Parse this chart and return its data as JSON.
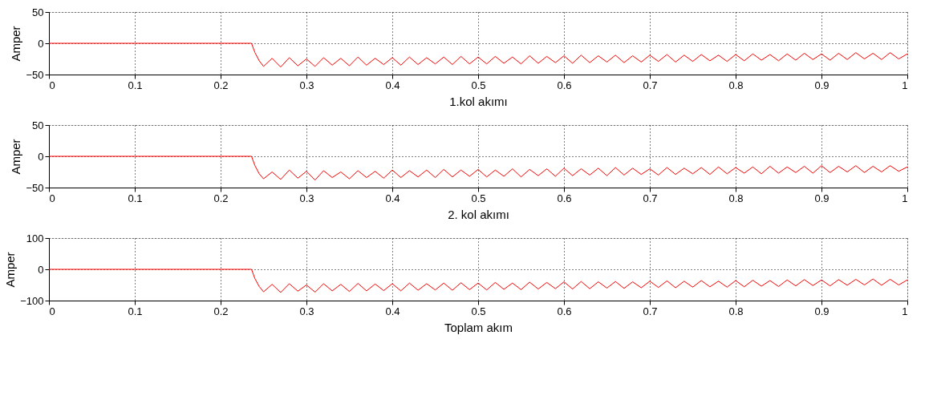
{
  "chart_data": [
    {
      "type": "line",
      "xlabel": "1.kol akımı",
      "ylabel": "Amper",
      "xlim": [
        0,
        1
      ],
      "ylim": [
        -50,
        50
      ],
      "xticks": [
        0,
        0.1,
        0.2,
        0.3,
        0.4,
        0.5,
        0.6,
        0.7,
        0.8,
        0.9,
        1
      ],
      "yticks": [
        -50,
        0,
        50
      ],
      "grid": true,
      "line_style": "solid",
      "series": [
        {
          "color": "#ff0000",
          "x": [
            0,
            0.012,
            0.236,
            0.24,
            0.245,
            0.25,
            0.26,
            0.27,
            0.28,
            0.29,
            0.3,
            0.31,
            0.32,
            0.33,
            0.34,
            0.35,
            0.36,
            0.37,
            0.38,
            0.39,
            0.4,
            0.41,
            0.42,
            0.43,
            0.44,
            0.45,
            0.46,
            0.47,
            0.48,
            0.49,
            0.5,
            0.51,
            0.52,
            0.53,
            0.54,
            0.55,
            0.56,
            0.57,
            0.58,
            0.59,
            0.6,
            0.61,
            0.62,
            0.63,
            0.64,
            0.65,
            0.66,
            0.67,
            0.68,
            0.69,
            0.7,
            0.71,
            0.72,
            0.73,
            0.74,
            0.75,
            0.76,
            0.77,
            0.78,
            0.79,
            0.8,
            0.81,
            0.82,
            0.83,
            0.84,
            0.85,
            0.86,
            0.87,
            0.88,
            0.89,
            0.9,
            0.91,
            0.92,
            0.93,
            0.94,
            0.95,
            0.96,
            0.97,
            0.98,
            0.99,
            1.0
          ],
          "values": [
            0,
            0,
            0,
            -15,
            -28,
            -37,
            -24,
            -38,
            -23,
            -36,
            -25,
            -37,
            -23,
            -35,
            -24,
            -36,
            -22,
            -35,
            -24,
            -34,
            -23,
            -35,
            -22,
            -34,
            -23,
            -33,
            -22,
            -34,
            -21,
            -33,
            -22,
            -33,
            -21,
            -32,
            -22,
            -33,
            -20,
            -32,
            -21,
            -31,
            -20,
            -32,
            -19,
            -31,
            -20,
            -30,
            -19,
            -31,
            -20,
            -30,
            -19,
            -29,
            -18,
            -30,
            -19,
            -29,
            -18,
            -28,
            -19,
            -29,
            -18,
            -28,
            -17,
            -27,
            -18,
            -28,
            -17,
            -27,
            -16,
            -26,
            -17,
            -27,
            -16,
            -26,
            -15,
            -25,
            -16,
            -26,
            -15,
            -25,
            -17
          ]
        }
      ]
    },
    {
      "type": "line",
      "xlabel": "2. kol akımı",
      "ylabel": "Amper",
      "xlim": [
        0,
        1
      ],
      "ylim": [
        -50,
        50
      ],
      "xticks": [
        0,
        0.1,
        0.2,
        0.3,
        0.4,
        0.5,
        0.6,
        0.7,
        0.8,
        0.9,
        1
      ],
      "yticks": [
        -50,
        0,
        50
      ],
      "grid": true,
      "line_style": "solid",
      "series": [
        {
          "color": "#ff0000",
          "x": [
            0,
            0.012,
            0.236,
            0.24,
            0.245,
            0.25,
            0.26,
            0.27,
            0.28,
            0.29,
            0.3,
            0.31,
            0.32,
            0.33,
            0.34,
            0.35,
            0.36,
            0.37,
            0.38,
            0.39,
            0.4,
            0.41,
            0.42,
            0.43,
            0.44,
            0.45,
            0.46,
            0.47,
            0.48,
            0.49,
            0.5,
            0.51,
            0.52,
            0.53,
            0.54,
            0.55,
            0.56,
            0.57,
            0.58,
            0.59,
            0.6,
            0.61,
            0.62,
            0.63,
            0.64,
            0.65,
            0.66,
            0.67,
            0.68,
            0.69,
            0.7,
            0.71,
            0.72,
            0.73,
            0.74,
            0.75,
            0.76,
            0.77,
            0.78,
            0.79,
            0.8,
            0.81,
            0.82,
            0.83,
            0.84,
            0.85,
            0.86,
            0.87,
            0.88,
            0.89,
            0.9,
            0.91,
            0.92,
            0.93,
            0.94,
            0.95,
            0.96,
            0.97,
            0.98,
            0.99,
            1.0
          ],
          "values": [
            0,
            0,
            0,
            -15,
            -28,
            -36,
            -25,
            -37,
            -22,
            -35,
            -24,
            -38,
            -23,
            -34,
            -25,
            -36,
            -23,
            -34,
            -24,
            -35,
            -22,
            -34,
            -23,
            -33,
            -22,
            -34,
            -21,
            -33,
            -22,
            -32,
            -21,
            -33,
            -22,
            -32,
            -20,
            -33,
            -21,
            -31,
            -20,
            -32,
            -19,
            -31,
            -20,
            -30,
            -19,
            -31,
            -18,
            -30,
            -19,
            -29,
            -20,
            -30,
            -18,
            -29,
            -19,
            -28,
            -18,
            -29,
            -17,
            -28,
            -18,
            -27,
            -17,
            -28,
            -16,
            -27,
            -17,
            -26,
            -16,
            -27,
            -15,
            -26,
            -16,
            -25,
            -15,
            -26,
            -16,
            -25,
            -15,
            -24,
            -17
          ]
        }
      ]
    },
    {
      "type": "line",
      "xlabel": "Toplam akım",
      "ylabel": "Amper",
      "xlim": [
        0,
        1
      ],
      "ylim": [
        -100,
        100
      ],
      "xticks": [
        0,
        0.1,
        0.2,
        0.3,
        0.4,
        0.5,
        0.6,
        0.7,
        0.8,
        0.9,
        1
      ],
      "yticks": [
        -100,
        0,
        100
      ],
      "grid": true,
      "line_style": "solid",
      "series": [
        {
          "color": "#ff0000",
          "x": [
            0,
            0.012,
            0.236,
            0.24,
            0.245,
            0.25,
            0.26,
            0.27,
            0.28,
            0.29,
            0.3,
            0.31,
            0.32,
            0.33,
            0.34,
            0.35,
            0.36,
            0.37,
            0.38,
            0.39,
            0.4,
            0.41,
            0.42,
            0.43,
            0.44,
            0.45,
            0.46,
            0.47,
            0.48,
            0.49,
            0.5,
            0.51,
            0.52,
            0.53,
            0.54,
            0.55,
            0.56,
            0.57,
            0.58,
            0.59,
            0.6,
            0.61,
            0.62,
            0.63,
            0.64,
            0.65,
            0.66,
            0.67,
            0.68,
            0.69,
            0.7,
            0.71,
            0.72,
            0.73,
            0.74,
            0.75,
            0.76,
            0.77,
            0.78,
            0.79,
            0.8,
            0.81,
            0.82,
            0.83,
            0.84,
            0.85,
            0.86,
            0.87,
            0.88,
            0.89,
            0.9,
            0.91,
            0.92,
            0.93,
            0.94,
            0.95,
            0.96,
            0.97,
            0.98,
            0.99,
            1.0
          ],
          "values": [
            0,
            0,
            0,
            -30,
            -55,
            -72,
            -48,
            -74,
            -46,
            -70,
            -50,
            -73,
            -46,
            -69,
            -48,
            -71,
            -45,
            -69,
            -47,
            -68,
            -46,
            -69,
            -44,
            -67,
            -46,
            -66,
            -44,
            -67,
            -43,
            -65,
            -44,
            -66,
            -42,
            -64,
            -44,
            -65,
            -41,
            -63,
            -42,
            -62,
            -40,
            -63,
            -39,
            -62,
            -40,
            -60,
            -39,
            -61,
            -40,
            -59,
            -38,
            -58,
            -37,
            -59,
            -38,
            -57,
            -36,
            -56,
            -38,
            -57,
            -36,
            -56,
            -35,
            -54,
            -36,
            -55,
            -34,
            -53,
            -33,
            -52,
            -34,
            -53,
            -33,
            -51,
            -32,
            -50,
            -31,
            -51,
            -32,
            -50,
            -34
          ]
        }
      ]
    }
  ]
}
